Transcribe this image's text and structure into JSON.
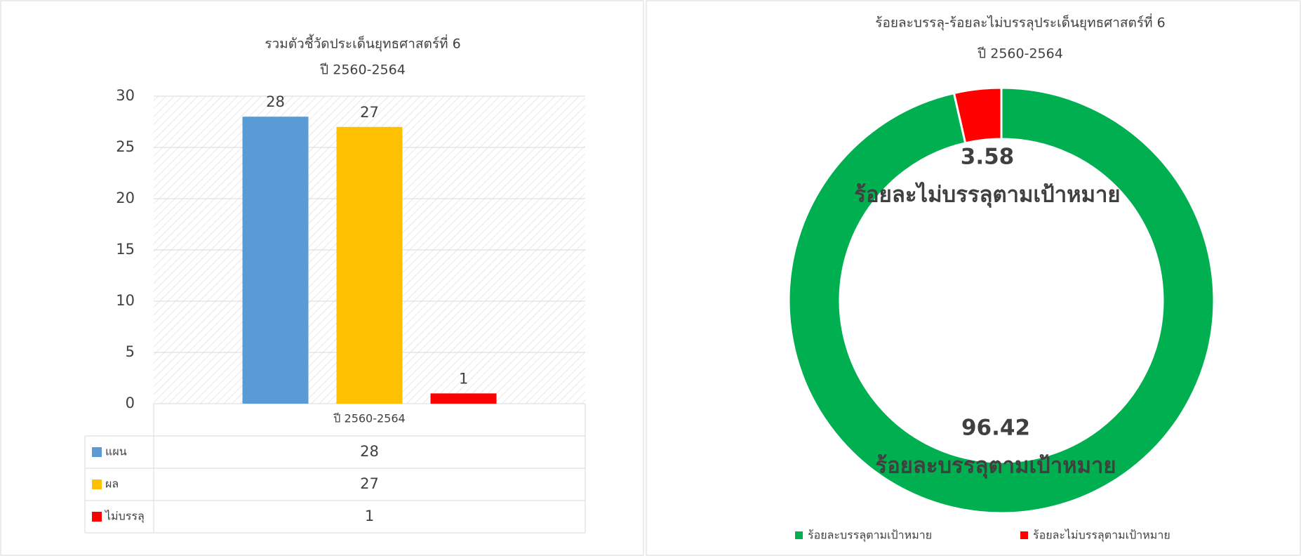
{
  "chart_data": [
    {
      "type": "bar",
      "title": "รวมตัวชี้วัดประเด็นยุทธศาสตร์ที่ 6",
      "subtitle": "ปี 2560-2564",
      "categories": [
        "ปี 2560-2564"
      ],
      "series": [
        {
          "name": "แผน",
          "color": "#5b9bd5",
          "values": [
            28
          ]
        },
        {
          "name": "ผล",
          "color": "#ffc000",
          "values": [
            27
          ]
        },
        {
          "name": "ไม่บรรลุ",
          "color": "#ff0000",
          "values": [
            1
          ]
        }
      ],
      "ylim": [
        0,
        30
      ],
      "yticks": [
        0,
        5,
        10,
        15,
        20,
        25,
        30
      ],
      "grid": true
    },
    {
      "type": "donut",
      "title": "ร้อยละบรรลุ-ร้อยละไม่บรรลุประเด็นยุทธศาสตร์ที่ 6",
      "subtitle": "ปี 2560-2564",
      "categories": [
        "ร้อยละบรรลุตามเป้าหมาย",
        "ร้อยละไม่บรรลุตามเป้าหมาย"
      ],
      "values": [
        96.42,
        3.58
      ],
      "colors": [
        "#00b050",
        "#ff0000"
      ]
    }
  ]
}
